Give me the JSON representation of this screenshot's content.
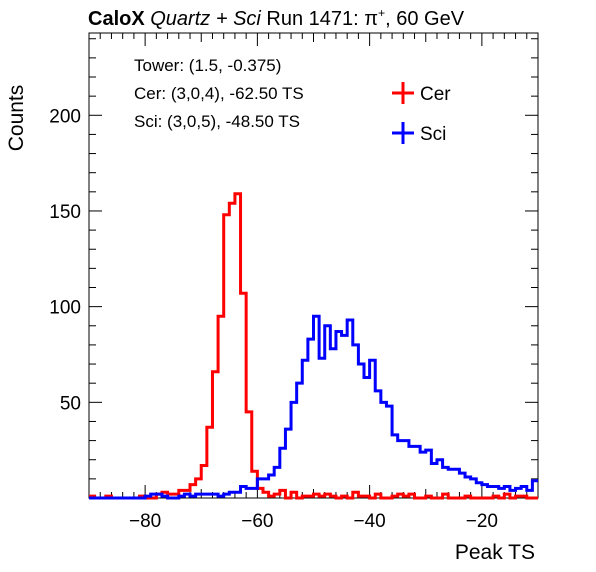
{
  "header": {
    "brand": "CaloX",
    "detectors": "Quartz + Sci",
    "run": "Run 1471:",
    "particle": "π",
    "charge": "+",
    "energy": ", 60 GeV"
  },
  "info": {
    "tower": "Tower: (1.5, -0.375)",
    "cer": "Cer: (3,0,4), -62.50 TS",
    "sci": "Sci: (3,0,5), -48.50 TS"
  },
  "chart_data": {
    "type": "histogram",
    "title": "CaloX Quartz + Sci Run 1471: π⁺, 60 GeV",
    "xlabel": "Peak TS",
    "ylabel": "Counts",
    "xlim": [
      -90,
      -10
    ],
    "ylim": [
      0,
      243
    ],
    "xticks": [
      -80,
      -60,
      -40,
      -20
    ],
    "yticks": [
      50,
      100,
      150,
      200
    ],
    "bin_width": 1,
    "legend_position": "top-right",
    "series": [
      {
        "name": "Cer",
        "color": "#ff0000",
        "x": [
          -90,
          -89,
          -88,
          -87,
          -86,
          -85,
          -84,
          -83,
          -82,
          -81,
          -80,
          -79,
          -78,
          -77,
          -76,
          -75,
          -74,
          -73,
          -72,
          -71,
          -70,
          -69,
          -68,
          -67,
          -66,
          -65,
          -64,
          -63,
          -62,
          -61,
          -60,
          -59,
          -58,
          -57,
          -56,
          -55,
          -54,
          -53,
          -52,
          -51,
          -50,
          -49,
          -48,
          -47,
          -46,
          -45,
          -44,
          -43,
          -42,
          -41,
          -40,
          -39,
          -38,
          -37,
          -36,
          -35,
          -34,
          -33,
          -32,
          -31,
          -30,
          -29,
          -28,
          -27,
          -26,
          -25,
          -24,
          -23,
          -22,
          -21,
          -20,
          -19,
          -18,
          -17,
          -16,
          -15,
          -14,
          -13,
          -12,
          -11
        ],
        "values": [
          1,
          0,
          0,
          1,
          0,
          0,
          0,
          0,
          0,
          1,
          0,
          0,
          2,
          3,
          2,
          2,
          4,
          4,
          7,
          10,
          17,
          37,
          66,
          95,
          148,
          154,
          159,
          107,
          45,
          14,
          5,
          3,
          1,
          2,
          4,
          0,
          3,
          0,
          1,
          1,
          2,
          1,
          2,
          1,
          0,
          1,
          0,
          3,
          1,
          1,
          0,
          2,
          0,
          0,
          1,
          2,
          1,
          2,
          0,
          0,
          1,
          0,
          0,
          2,
          0,
          0,
          0,
          1,
          0,
          0,
          0,
          0,
          1,
          0,
          2,
          0,
          1,
          1,
          0,
          0
        ]
      },
      {
        "name": "Sci",
        "color": "#0000ff",
        "x": [
          -90,
          -89,
          -88,
          -87,
          -86,
          -85,
          -84,
          -83,
          -82,
          -81,
          -80,
          -79,
          -78,
          -77,
          -76,
          -75,
          -74,
          -73,
          -72,
          -71,
          -70,
          -69,
          -68,
          -67,
          -66,
          -65,
          -64,
          -63,
          -62,
          -61,
          -60,
          -59,
          -58,
          -57,
          -56,
          -55,
          -54,
          -53,
          -52,
          -51,
          -50,
          -49,
          -48,
          -47,
          -46,
          -45,
          -44,
          -43,
          -42,
          -41,
          -40,
          -39,
          -38,
          -37,
          -36,
          -35,
          -34,
          -33,
          -32,
          -31,
          -30,
          -29,
          -28,
          -27,
          -26,
          -25,
          -24,
          -23,
          -22,
          -21,
          -20,
          -19,
          -18,
          -17,
          -16,
          -15,
          -14,
          -13,
          -12,
          -11
        ],
        "values": [
          0,
          0,
          0,
          0,
          0,
          0,
          0,
          0,
          0,
          0,
          1,
          2,
          2,
          1,
          0,
          0,
          1,
          2,
          1,
          2,
          2,
          2,
          2,
          1,
          2,
          3,
          3,
          6,
          5,
          5,
          10,
          10,
          12,
          16,
          26,
          36,
          50,
          60,
          72,
          83,
          95,
          73,
          90,
          78,
          87,
          85,
          93,
          80,
          70,
          63,
          72,
          56,
          50,
          48,
          33,
          30,
          30,
          27,
          27,
          24,
          25,
          18,
          20,
          16,
          15,
          15,
          13,
          11,
          10,
          8,
          7,
          6,
          6,
          5,
          6,
          4,
          5,
          6,
          4,
          9
        ]
      }
    ]
  }
}
